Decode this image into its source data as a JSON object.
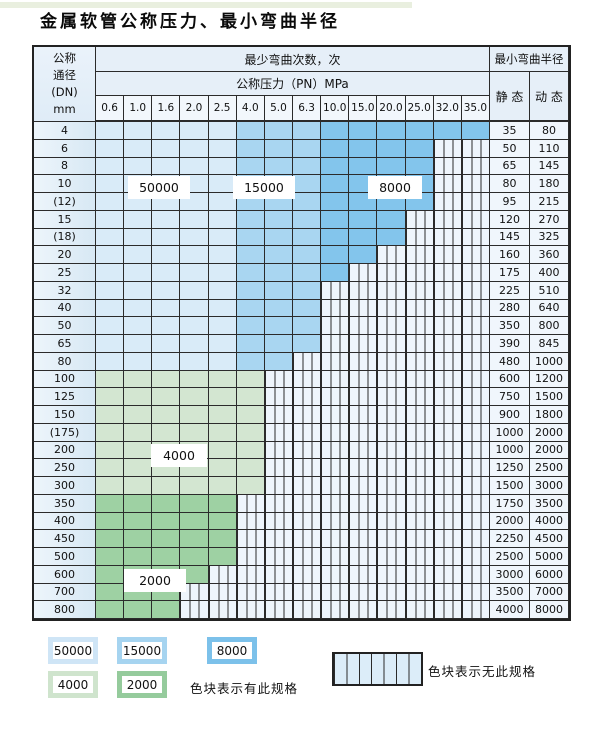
{
  "title": "金属软管公称压力、最小弯曲半径",
  "table": {
    "dn_header_lines": [
      "公称",
      "通径",
      "(DN)",
      "mm"
    ],
    "cycles_header": "最少弯曲次数，次",
    "pn_header": "公称压力（PN）MPa",
    "radius_header": "最小弯曲半径",
    "static_header": "静 态",
    "dynamic_header": "动 态",
    "pressures": [
      "0.6",
      "1.0",
      "1.6",
      "2.0",
      "2.5",
      "4.0",
      "5.0",
      "6.3",
      "10.0",
      "15.0",
      "20.0",
      "25.0",
      "32.0",
      "35.0"
    ],
    "rows": [
      {
        "dn": "4",
        "zone": "blue",
        "colored": 14,
        "static": "35",
        "dynamic": "80"
      },
      {
        "dn": "6",
        "zone": "blue",
        "colored": 12,
        "static": "50",
        "dynamic": "110"
      },
      {
        "dn": "8",
        "zone": "blue",
        "colored": 12,
        "static": "65",
        "dynamic": "145"
      },
      {
        "dn": "10",
        "zone": "blue",
        "colored": 12,
        "static": "80",
        "dynamic": "180"
      },
      {
        "dn": "(12)",
        "zone": "blue",
        "colored": 12,
        "static": "95",
        "dynamic": "215"
      },
      {
        "dn": "15",
        "zone": "blue",
        "colored": 11,
        "static": "120",
        "dynamic": "270"
      },
      {
        "dn": "(18)",
        "zone": "blue",
        "colored": 11,
        "static": "145",
        "dynamic": "325"
      },
      {
        "dn": "20",
        "zone": "blue",
        "colored": 10,
        "static": "160",
        "dynamic": "360"
      },
      {
        "dn": "25",
        "zone": "blue",
        "colored": 9,
        "static": "175",
        "dynamic": "400"
      },
      {
        "dn": "32",
        "zone": "blue",
        "colored": 8,
        "static": "225",
        "dynamic": "510"
      },
      {
        "dn": "40",
        "zone": "blue",
        "colored": 8,
        "static": "280",
        "dynamic": "640"
      },
      {
        "dn": "50",
        "zone": "blue",
        "colored": 8,
        "static": "350",
        "dynamic": "800"
      },
      {
        "dn": "65",
        "zone": "blue",
        "colored": 8,
        "static": "390",
        "dynamic": "845"
      },
      {
        "dn": "80",
        "zone": "blue",
        "colored": 7,
        "static": "480",
        "dynamic": "1000"
      },
      {
        "dn": "100",
        "zone": "g4",
        "colored": 6,
        "static": "600",
        "dynamic": "1200"
      },
      {
        "dn": "125",
        "zone": "g4",
        "colored": 6,
        "static": "750",
        "dynamic": "1500"
      },
      {
        "dn": "150",
        "zone": "g4",
        "colored": 6,
        "static": "900",
        "dynamic": "1800"
      },
      {
        "dn": "(175)",
        "zone": "g4",
        "colored": 6,
        "static": "1000",
        "dynamic": "2000"
      },
      {
        "dn": "200",
        "zone": "g4",
        "colored": 6,
        "static": "1000",
        "dynamic": "2000"
      },
      {
        "dn": "250",
        "zone": "g4",
        "colored": 6,
        "static": "1250",
        "dynamic": "2500"
      },
      {
        "dn": "300",
        "zone": "g4",
        "colored": 6,
        "static": "1500",
        "dynamic": "3000"
      },
      {
        "dn": "350",
        "zone": "g2",
        "colored": 5,
        "static": "1750",
        "dynamic": "3500"
      },
      {
        "dn": "400",
        "zone": "g2",
        "colored": 5,
        "static": "2000",
        "dynamic": "4000"
      },
      {
        "dn": "450",
        "zone": "g2",
        "colored": 5,
        "static": "2250",
        "dynamic": "4500"
      },
      {
        "dn": "500",
        "zone": "g2",
        "colored": 5,
        "static": "2500",
        "dynamic": "5000"
      },
      {
        "dn": "600",
        "zone": "g2",
        "colored": 4,
        "static": "3000",
        "dynamic": "6000"
      },
      {
        "dn": "700",
        "zone": "g2",
        "colored": 3,
        "static": "3500",
        "dynamic": "7000"
      },
      {
        "dn": "800",
        "zone": "g2",
        "colored": 3,
        "static": "4000",
        "dynamic": "8000"
      }
    ]
  },
  "zone_labels": {
    "l50000": "50000",
    "l15000": "15000",
    "l8000": "8000",
    "l4000": "4000",
    "l2000": "2000"
  },
  "legend": {
    "items": [
      {
        "label": "50000",
        "color": "#cfe5f6"
      },
      {
        "label": "15000",
        "color": "#a6d4f0"
      },
      {
        "label": "8000",
        "color": "#7cc1ea"
      },
      {
        "label": "4000",
        "color": "#cfe4cd"
      },
      {
        "label": "2000",
        "color": "#95cb9c"
      }
    ],
    "has_spec_text": "色块表示有此规格",
    "no_spec_text": "色块表示无此规格"
  },
  "colors": {
    "c50000": "#d9ebf8",
    "c15000": "#a9d6f1",
    "c8000": "#83c5ec",
    "c4000": "#d3e6d1",
    "c2000": "#9ed1a3",
    "hatch_bg": "#eef5fc",
    "grid": "#2b2b2b"
  }
}
